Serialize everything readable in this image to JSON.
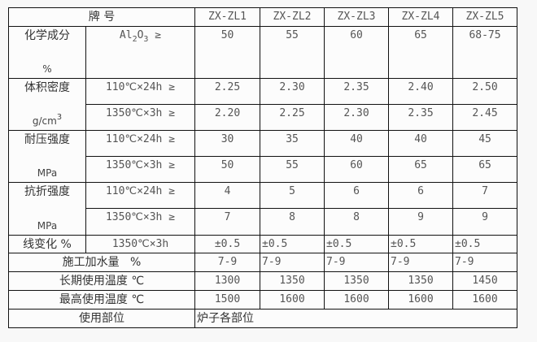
{
  "header": {
    "brand": "牌  号",
    "grades": [
      "ZX-ZL1",
      "ZX-ZL2",
      "ZX-ZL3",
      "ZX-ZL4",
      "ZX-ZL5"
    ]
  },
  "chemical": {
    "label": "化学成分",
    "unit": "%",
    "cond_main": "Al",
    "cond_sub1": "2",
    "cond_o": "O",
    "cond_sub2": "3",
    "cond_ge": " ≥",
    "values": [
      "50",
      "55",
      "60",
      "65",
      "68-75"
    ]
  },
  "density": {
    "label": "体积密度",
    "unit_main": "g/cm",
    "unit_sup": "3",
    "rows": [
      {
        "cond": "110℃×24h ≥",
        "values": [
          "2.25",
          "2.30",
          "2.35",
          "2.40",
          "2.50"
        ]
      },
      {
        "cond": "1350℃×3h ≥",
        "values": [
          "2.20",
          "2.25",
          "2.30",
          "2.35",
          "2.45"
        ]
      }
    ]
  },
  "compressive": {
    "label": "耐压强度",
    "unit": "MPa",
    "rows": [
      {
        "cond": "110℃×24h ≥",
        "values": [
          "30",
          "35",
          "40",
          "40",
          "45"
        ]
      },
      {
        "cond": "1350℃×3h ≥",
        "values": [
          "50",
          "55",
          "60",
          "65",
          "65"
        ]
      }
    ]
  },
  "flexural": {
    "label": "抗折强度",
    "unit": "MPa",
    "rows": [
      {
        "cond": "110℃×24h ≥",
        "values": [
          "4",
          "5",
          "6",
          "6",
          "7"
        ]
      },
      {
        "cond": "1350℃×3h ≥",
        "values": [
          "7",
          "8",
          "8",
          "9",
          "9"
        ]
      }
    ]
  },
  "linear": {
    "label": "线变化 %",
    "cond": "1350℃×3h",
    "values": [
      "±0.5",
      "±0.5",
      "±0.5",
      "±0.5",
      "±0.5"
    ]
  },
  "water": {
    "label": "施工加水量   %",
    "values": [
      "7-9",
      "7-9",
      "7-9",
      "7-9",
      "7-9"
    ]
  },
  "long_temp": {
    "label": "长期使用温度 ℃",
    "values": [
      "1300",
      "1350",
      "1350",
      "1350",
      "1450"
    ]
  },
  "max_temp": {
    "label": "最高使用温度 ℃",
    "values": [
      "1500",
      "1600",
      "1600",
      "1600",
      "1600"
    ]
  },
  "usage": {
    "label": "使用部位",
    "value": "炉子各部位"
  }
}
